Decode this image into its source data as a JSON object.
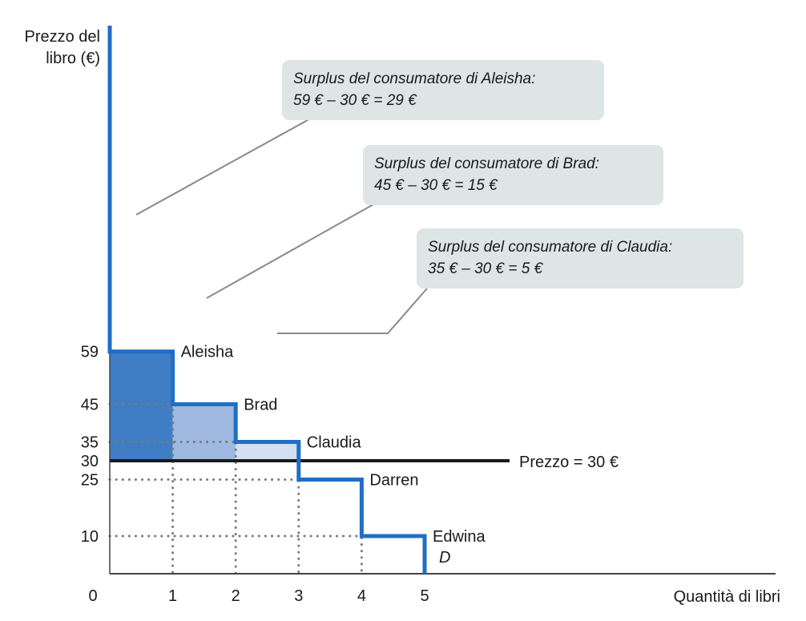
{
  "chart_data": {
    "type": "line",
    "ylabel_line1": "Prezzo del",
    "ylabel_line2": "libro (€)",
    "xlabel": "Quantità di libri",
    "origin_label": "0",
    "x_ticks": [
      "1",
      "2",
      "3",
      "4",
      "5"
    ],
    "y_ticks": [
      "59",
      "45",
      "35",
      "30",
      "25",
      "10"
    ],
    "price_line": {
      "value": 30,
      "label": "Prezzo = 30 €"
    },
    "demand_label": "D",
    "series": [
      {
        "name": "D",
        "steps": [
          {
            "consumer": "Aleisha",
            "from": 0,
            "to": 1,
            "price": 59
          },
          {
            "consumer": "Brad",
            "from": 1,
            "to": 2,
            "price": 45
          },
          {
            "consumer": "Claudia",
            "from": 2,
            "to": 3,
            "price": 35
          },
          {
            "consumer": "Darren",
            "from": 3,
            "to": 4,
            "price": 25
          },
          {
            "consumer": "Edwina",
            "from": 4,
            "to": 5,
            "price": 10
          }
        ]
      }
    ],
    "annotations": [
      {
        "line1": "Surplus del consumatore di Aleisha:",
        "line2": "59 € – 30 € = 29 €"
      },
      {
        "line1": "Surplus del consumatore di Brad:",
        "line2": "45 € – 30 € = 15 €"
      },
      {
        "line1": "Surplus del consumatore di Claudia:",
        "line2": "35 € – 30 € = 5 €"
      }
    ],
    "colors": {
      "demand": "#1f6fc4",
      "surplus_aleisha": "#3f7ec4",
      "surplus_brad": "#9fb8df",
      "surplus_claudia": "#d3e0f2",
      "price_line": "#1a1a1a",
      "note_box": "#dde5e5",
      "guide": "#7a7a7a"
    }
  }
}
